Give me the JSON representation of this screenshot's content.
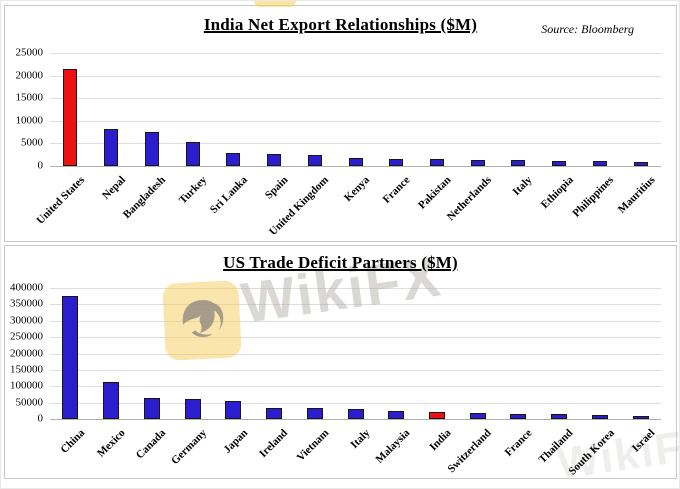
{
  "watermark": {
    "brand_text": "WikiFX"
  },
  "chart_data": [
    {
      "type": "bar",
      "title": "India Net Export Relationships ($M)",
      "source_note": "Source: Bloomberg",
      "categories": [
        "United States",
        "Nepal",
        "Bangladesh",
        "Turkey",
        "Sri Lanka",
        "Spain",
        "United Kingdom",
        "Kenya",
        "France",
        "Pakistan",
        "Netherlands",
        "Italy",
        "Ethiopia",
        "Philippines",
        "Mauritius"
      ],
      "values": [
        21400,
        8200,
        7600,
        5400,
        2900,
        2600,
        2400,
        1700,
        1600,
        1500,
        1400,
        1300,
        1100,
        1000,
        800
      ],
      "bar_color": "#2a1ecf",
      "highlight": {
        "index": 0,
        "color": "#ee1111"
      },
      "ylim": [
        0,
        25000
      ],
      "ytick_step": 5000,
      "grid": true,
      "legend": false,
      "xlabel": "",
      "ylabel": ""
    },
    {
      "type": "bar",
      "title": "US Trade Deficit Partners ($M)",
      "source_note": "",
      "categories": [
        "China",
        "Mexico",
        "Canada",
        "Germany",
        "Japan",
        "Ireland",
        "Vietnam",
        "Italy",
        "Malaysia",
        "India",
        "Switzerland",
        "France",
        "Thailand",
        "South Korea",
        "Israel"
      ],
      "values": [
        375000,
        112000,
        65000,
        61000,
        55000,
        35000,
        33000,
        30000,
        23000,
        21000,
        19000,
        16000,
        14000,
        12000,
        10000
      ],
      "bar_color": "#2a1ecf",
      "highlight": {
        "index": 9,
        "color": "#ee1111"
      },
      "ylim": [
        0,
        400000
      ],
      "ytick_step": 50000,
      "grid": true,
      "legend": false,
      "xlabel": "",
      "ylabel": ""
    }
  ]
}
